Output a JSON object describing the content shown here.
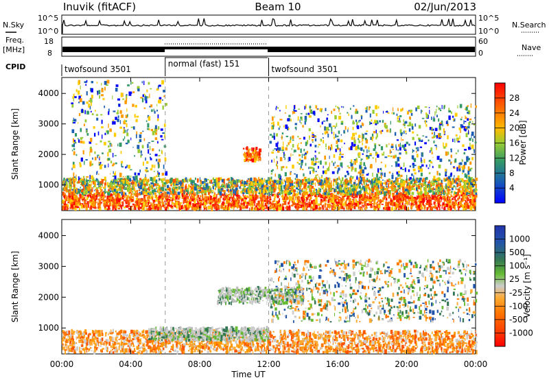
{
  "header": {
    "title": "Inuvik (fitACF)",
    "beam": "Beam 10",
    "date": "02/Jun/2013"
  },
  "strips": {
    "nsky_label": "N.Sky",
    "nsearch_label": "N.Search",
    "noise_ticks": [
      "10^5",
      "10^0"
    ],
    "freq_label_1": "Freq.",
    "freq_label_2": "[MHz]",
    "freq_ticks": [
      "18",
      "8"
    ],
    "nave_label": "Nave",
    "nave_ticks": [
      "60",
      "0"
    ],
    "cpid_label": "CPID"
  },
  "chart_data": [
    {
      "type": "table",
      "name": "cpid",
      "segments": [
        {
          "label": "twofsound 3501",
          "start": 0,
          "end": 6
        },
        {
          "label": "normal (fast) 151",
          "start": 6,
          "end": 12
        },
        {
          "label": "twofsound 3501",
          "start": 12,
          "end": 24
        }
      ]
    },
    {
      "type": "heatmap",
      "name": "power",
      "ylabel": "Slant Range [km]",
      "yticks": [
        1000,
        2000,
        3000,
        4000
      ],
      "ylim": [
        180,
        4500
      ],
      "xlim": [
        0,
        24
      ],
      "colorbar_label": "Power [dB]",
      "colorbar_ticks": [
        "28",
        "24",
        "20",
        "16",
        "12",
        "8",
        "4"
      ],
      "colorbar_colors": [
        "#ff0000",
        "#ff5500",
        "#ff9900",
        "#ffcc00",
        "#99cc33",
        "#339966",
        "#1a5fb4",
        "#0000ff"
      ],
      "bands": [
        {
          "start": 0,
          "end": 24,
          "rmin": 200,
          "rmax": 700,
          "level": "strong"
        },
        {
          "start": 0,
          "end": 24,
          "rmin": 700,
          "rmax": 1200,
          "level": "medium"
        },
        {
          "start": 10.5,
          "end": 11.5,
          "rmin": 1800,
          "rmax": 2200,
          "level": "strong"
        },
        {
          "start": 0.5,
          "end": 6,
          "rmin": 1200,
          "rmax": 4400,
          "level": "weak"
        },
        {
          "start": 12,
          "end": 24,
          "rmin": 1200,
          "rmax": 3600,
          "level": "weak"
        }
      ]
    },
    {
      "type": "heatmap",
      "name": "velocity",
      "ylabel": "Slant Range [km]",
      "yticks": [
        1000,
        2000,
        3000,
        4000
      ],
      "ylim": [
        180,
        4500
      ],
      "xlim": [
        0,
        24
      ],
      "xticks": [
        "00:00",
        "04:00",
        "08:00",
        "12:00",
        "16:00",
        "20:00",
        "00:00"
      ],
      "xlabel": "Time UT",
      "colorbar_label": "Velocity [m s⁻¹]",
      "colorbar_ticks": [
        "1000",
        "500",
        "100",
        "25",
        "-25",
        "-100",
        "-500",
        "-1000"
      ],
      "colorbar_colors": [
        "#2233aa",
        "#337755",
        "#66bb33",
        "#cccccc",
        "#ffaa33",
        "#ff7700",
        "#ff3300",
        "#ff0000"
      ],
      "bands": [
        {
          "start": 0,
          "end": 24,
          "rmin": 200,
          "rmax": 900,
          "level": "negative"
        },
        {
          "start": 5,
          "end": 12,
          "rmin": 600,
          "rmax": 1000,
          "level": "ground"
        },
        {
          "start": 9,
          "end": 14,
          "rmin": 1800,
          "rmax": 2300,
          "level": "ground"
        },
        {
          "start": 12,
          "end": 24,
          "rmin": 1200,
          "rmax": 3200,
          "level": "mixed"
        }
      ]
    }
  ]
}
